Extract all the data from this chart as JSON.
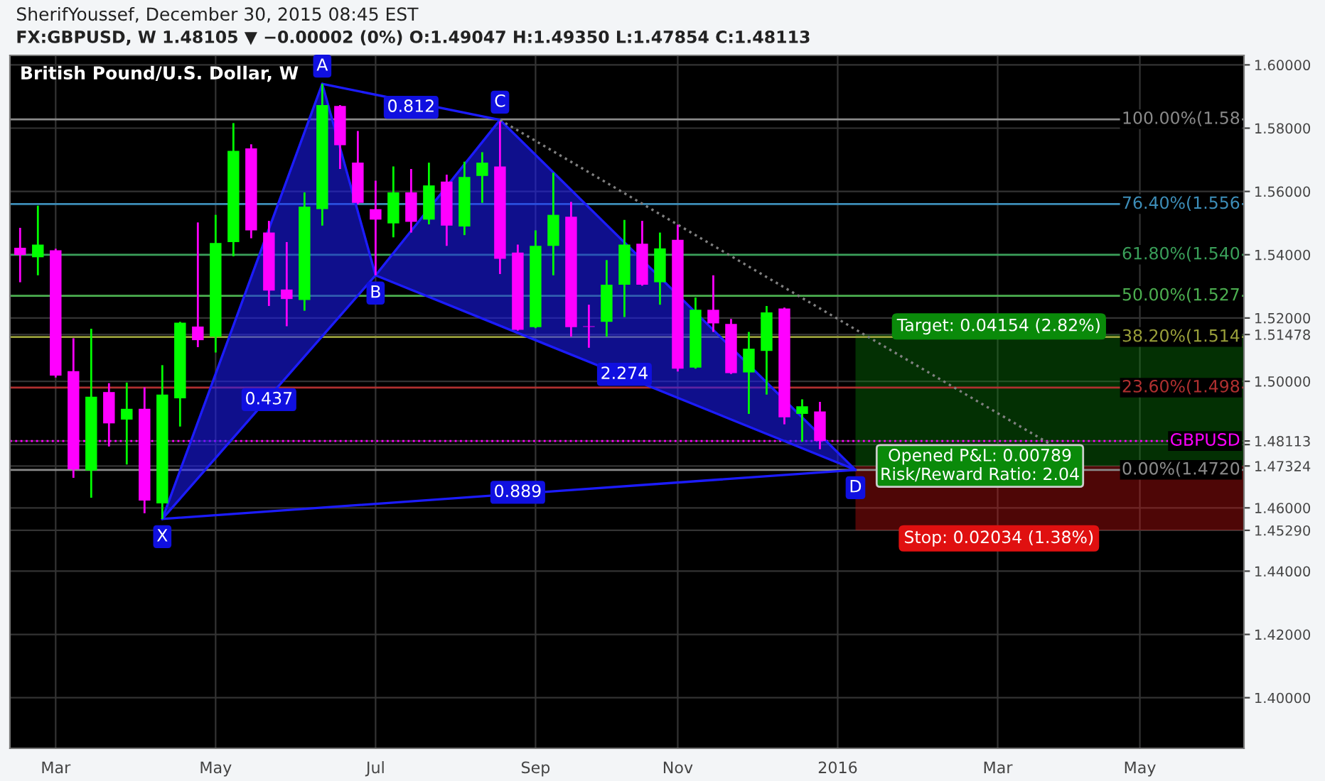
{
  "chart_data": {
    "type": "candlestick",
    "title": "British Pound/U.S. Dollar, W",
    "subtitle": "FX:GBPUSD, W 1.48105 ▼ −0.00002 (0%) O:1.49047 H:1.49350 L:1.47854 C:1.48113",
    "x": [
      "2015-02-16",
      "2015-02-23",
      "2015-03-02",
      "2015-03-09",
      "2015-03-16",
      "2015-03-23",
      "2015-03-30",
      "2015-04-06",
      "2015-04-13",
      "2015-04-20",
      "2015-04-27",
      "2015-05-04",
      "2015-05-11",
      "2015-05-18",
      "2015-05-25",
      "2015-06-01",
      "2015-06-08",
      "2015-06-15",
      "2015-06-22",
      "2015-06-29",
      "2015-07-06",
      "2015-07-13",
      "2015-07-20",
      "2015-07-27",
      "2015-08-03",
      "2015-08-10",
      "2015-08-17",
      "2015-08-24",
      "2015-08-31",
      "2015-09-07",
      "2015-09-14",
      "2015-09-21",
      "2015-09-28",
      "2015-10-05",
      "2015-10-12",
      "2015-10-19",
      "2015-10-26",
      "2015-11-02",
      "2015-11-09",
      "2015-11-16",
      "2015-11-23",
      "2015-11-30",
      "2015-12-07",
      "2015-12-14",
      "2015-12-21",
      "2015-12-28"
    ],
    "ohlc": [
      [
        1.5422,
        1.5485,
        1.5313,
        1.5399
      ],
      [
        1.5392,
        1.5555,
        1.5335,
        1.5432
      ],
      [
        1.5414,
        1.5419,
        1.5012,
        1.5018
      ],
      [
        1.5032,
        1.5136,
        1.4695,
        1.4722
      ],
      [
        1.4718,
        1.5166,
        1.4632,
        1.4951
      ],
      [
        1.4966,
        1.4994,
        1.4794,
        1.4867
      ],
      [
        1.4879,
        1.4996,
        1.4737,
        1.4913
      ],
      [
        1.4913,
        1.4981,
        1.4583,
        1.4623
      ],
      [
        1.4614,
        1.5051,
        1.4565,
        1.4958
      ],
      [
        1.4946,
        1.5188,
        1.4857,
        1.5185
      ],
      [
        1.5173,
        1.5502,
        1.5108,
        1.513
      ],
      [
        1.5141,
        1.5526,
        1.5091,
        1.5437
      ],
      [
        1.544,
        1.5816,
        1.5395,
        1.5728
      ],
      [
        1.5736,
        1.5749,
        1.5452,
        1.5477
      ],
      [
        1.547,
        1.5507,
        1.5238,
        1.5287
      ],
      [
        1.529,
        1.544,
        1.5174,
        1.526
      ],
      [
        1.5257,
        1.5597,
        1.5223,
        1.5552
      ],
      [
        1.5544,
        1.594,
        1.5492,
        1.5873
      ],
      [
        1.587,
        1.5873,
        1.5671,
        1.5746
      ],
      [
        1.5691,
        1.5791,
        1.556,
        1.5564
      ],
      [
        1.5544,
        1.5634,
        1.5335,
        1.5511
      ],
      [
        1.5499,
        1.5679,
        1.5455,
        1.5597
      ],
      [
        1.5597,
        1.5671,
        1.547,
        1.5504
      ],
      [
        1.5511,
        1.5691,
        1.5496,
        1.5619
      ],
      [
        1.5631,
        1.5653,
        1.5428,
        1.5492
      ],
      [
        1.5489,
        1.5694,
        1.5462,
        1.5646
      ],
      [
        1.5649,
        1.5724,
        1.5564,
        1.5691
      ],
      [
        1.5679,
        1.5821,
        1.5339,
        1.5387
      ],
      [
        1.5407,
        1.5432,
        1.516,
        1.5163
      ],
      [
        1.5171,
        1.5477,
        1.5168,
        1.5428
      ],
      [
        1.5428,
        1.5659,
        1.5335,
        1.5526
      ],
      [
        1.552,
        1.5567,
        1.5141,
        1.5171
      ],
      [
        1.5174,
        1.5242,
        1.5106,
        1.5172
      ],
      [
        1.5188,
        1.5383,
        1.5141,
        1.5305
      ],
      [
        1.5305,
        1.551,
        1.5203,
        1.5432
      ],
      [
        1.5435,
        1.5507,
        1.5302,
        1.5305
      ],
      [
        1.5313,
        1.547,
        1.5242,
        1.542
      ],
      [
        1.5447,
        1.5495,
        1.5031,
        1.504
      ],
      [
        1.5043,
        1.5265,
        1.504,
        1.5226
      ],
      [
        1.5226,
        1.5335,
        1.5156,
        1.5183
      ],
      [
        1.5181,
        1.5197,
        1.5023,
        1.5026
      ],
      [
        1.5028,
        1.5156,
        1.4897,
        1.5103
      ],
      [
        1.5096,
        1.5238,
        1.4958,
        1.5218
      ],
      [
        1.523,
        1.5233,
        1.4864,
        1.4886
      ],
      [
        1.4897,
        1.4943,
        1.4809,
        1.4921
      ],
      [
        1.49047,
        1.4935,
        1.47854,
        1.48113
      ]
    ],
    "colors": [
      "#ff00ff",
      "#00ff00",
      "#ff00ff",
      "#ff00ff",
      "#00ff00",
      "#ff00ff",
      "#00ff00",
      "#ff00ff",
      "#00ff00",
      "#00ff00",
      "#ff00ff",
      "#00ff00",
      "#00ff00",
      "#ff00ff",
      "#ff00ff",
      "#ff00ff",
      "#00ff00",
      "#00ff00",
      "#ff00ff",
      "#ff00ff",
      "#ff00ff",
      "#00ff00",
      "#ff00ff",
      "#00ff00",
      "#ff00ff",
      "#00ff00",
      "#00ff00",
      "#ff00ff",
      "#ff00ff",
      "#00ff00",
      "#00ff00",
      "#ff00ff",
      "#ff00ff",
      "#00ff00",
      "#00ff00",
      "#ff00ff",
      "#00ff00",
      "#ff00ff",
      "#00ff00",
      "#ff00ff",
      "#ff00ff",
      "#00ff00",
      "#00ff00",
      "#ff00ff",
      "#00ff00",
      "#ff00ff"
    ],
    "series": [
      {
        "type": "line",
        "color": "#1c1cff",
        "x": [
          "2015-04-13",
          "2015-06-15",
          "2015-07-06",
          "2015-08-24",
          "2016-01-11"
        ],
        "values": [
          1.4565,
          1.594,
          1.5335,
          1.5826,
          1.472
        ],
        "marker": "none"
      },
      {
        "type": "line",
        "color": "#1c1cff",
        "x": [
          "2015-04-13",
          "2015-07-06",
          "2016-01-11"
        ],
        "values": [
          1.4565,
          1.5335,
          1.472
        ]
      },
      {
        "type": "line",
        "color": "#1c1cff",
        "x": [
          "2015-06-15",
          "2015-08-24"
        ],
        "values": [
          1.594,
          1.5826
        ]
      },
      {
        "type": "line",
        "color": "#1c1cff",
        "x": [
          "2015-04-13",
          "2016-01-11"
        ],
        "values": [
          1.4565,
          1.472
        ]
      },
      {
        "type": "line",
        "color": "#808080",
        "line_style": "dotted",
        "x": [
          "2015-08-24",
          "2016-03-28"
        ],
        "values": [
          1.5826,
          1.48
        ]
      }
    ],
    "ref_lines": [
      {
        "axis": "y",
        "value": 1.5828,
        "label": "100.00%(1.58",
        "color": "#8a8a8a"
      },
      {
        "axis": "y",
        "value": 1.556,
        "label": "76.40%(1.556",
        "color": "#3d8eb9"
      },
      {
        "axis": "y",
        "value": 1.54,
        "label": "61.80%(1.540",
        "color": "#3aa05a"
      },
      {
        "axis": "y",
        "value": 1.527,
        "label": "50.00%(1.527",
        "color": "#4caf50"
      },
      {
        "axis": "y",
        "value": 1.514,
        "label": "38.20%(1.514",
        "color": "#9aa03a"
      },
      {
        "axis": "y",
        "value": 1.498,
        "label": "23.60%(1.498",
        "color": "#b03030"
      },
      {
        "axis": "y",
        "value": 1.472,
        "label": "0.00%(1.4720",
        "color": "#8a8a8a"
      },
      {
        "axis": "y",
        "value": 1.48113,
        "label": "GBPUSD",
        "color": "#ff00ff",
        "line_style": "dotted"
      }
    ],
    "bands": [
      {
        "axis": "y",
        "from": 1.47324,
        "to": 1.51478,
        "label": "Target: 0.04154 (2.82%)",
        "color": "#0a8a0a"
      },
      {
        "axis": "y",
        "from": 1.4529,
        "to": 1.47324,
        "label": "Stop: 0.02034 (1.38%)",
        "color": "#e01010"
      }
    ],
    "annotations": [
      "SherifYoussef, December 30, 2015 08:45 EST",
      {
        "text": "X",
        "x": "2015-04-13",
        "y": 1.4565
      },
      {
        "text": "A",
        "x": "2015-06-15",
        "y": 1.594
      },
      {
        "text": "B",
        "x": "2015-07-06",
        "y": 1.5335
      },
      {
        "text": "C",
        "x": "2015-08-24",
        "y": 1.5826
      },
      {
        "text": "D",
        "x": "2016-01-11",
        "y": 1.472
      },
      {
        "text": "0.812",
        "x": "2015-07-20",
        "y": 1.5866
      },
      {
        "text": "0.437",
        "x": "2015-05-25",
        "y": 1.4942
      },
      {
        "text": "2.274",
        "x": "2015-10-12",
        "y": 1.5022
      },
      {
        "text": "0.889",
        "x": "2015-08-31",
        "y": 1.4649
      },
      {
        "text": "Opened P&L: 0.00789\nRisk/Reward Ratio: 2.04",
        "x": "2016-02-29",
        "y": 1.47324
      }
    ],
    "xlim": [
      "2015-02-12",
      "2016-06-12"
    ],
    "xticks": [
      {
        "value": "2015-03-02",
        "label": "Mar"
      },
      {
        "value": "2015-05-04",
        "label": "May"
      },
      {
        "value": "2015-07-06",
        "label": "Jul"
      },
      {
        "value": "2015-09-07",
        "label": "Sep"
      },
      {
        "value": "2015-11-02",
        "label": "Nov"
      },
      {
        "value": "2016-01-04",
        "label": "2016"
      },
      {
        "value": "2016-03-07",
        "label": "Mar"
      },
      {
        "value": "2016-05-02",
        "label": "May"
      }
    ],
    "ylim": [
      1.384,
      1.603
    ],
    "yticks": [
      {
        "value": 1.4,
        "label": "1.40000"
      },
      {
        "value": 1.42,
        "label": "1.42000"
      },
      {
        "value": 1.44,
        "label": "1.44000"
      },
      {
        "value": 1.4529,
        "label": "1.45290"
      },
      {
        "value": 1.46,
        "label": "1.46000"
      },
      {
        "value": 1.47324,
        "label": "1.47324"
      },
      {
        "value": 1.48,
        "label": null
      },
      {
        "value": 1.48113,
        "label": "1.48113"
      },
      {
        "value": 1.5,
        "label": "1.50000"
      },
      {
        "value": 1.51478,
        "label": "1.51478"
      },
      {
        "value": 1.52,
        "label": "1.52000"
      },
      {
        "value": 1.54,
        "label": "1.54000"
      },
      {
        "value": 1.56,
        "label": "1.56000"
      },
      {
        "value": 1.58,
        "label": "1.58000"
      },
      {
        "value": 1.6,
        "label": "1.60000"
      }
    ],
    "grid": true
  }
}
